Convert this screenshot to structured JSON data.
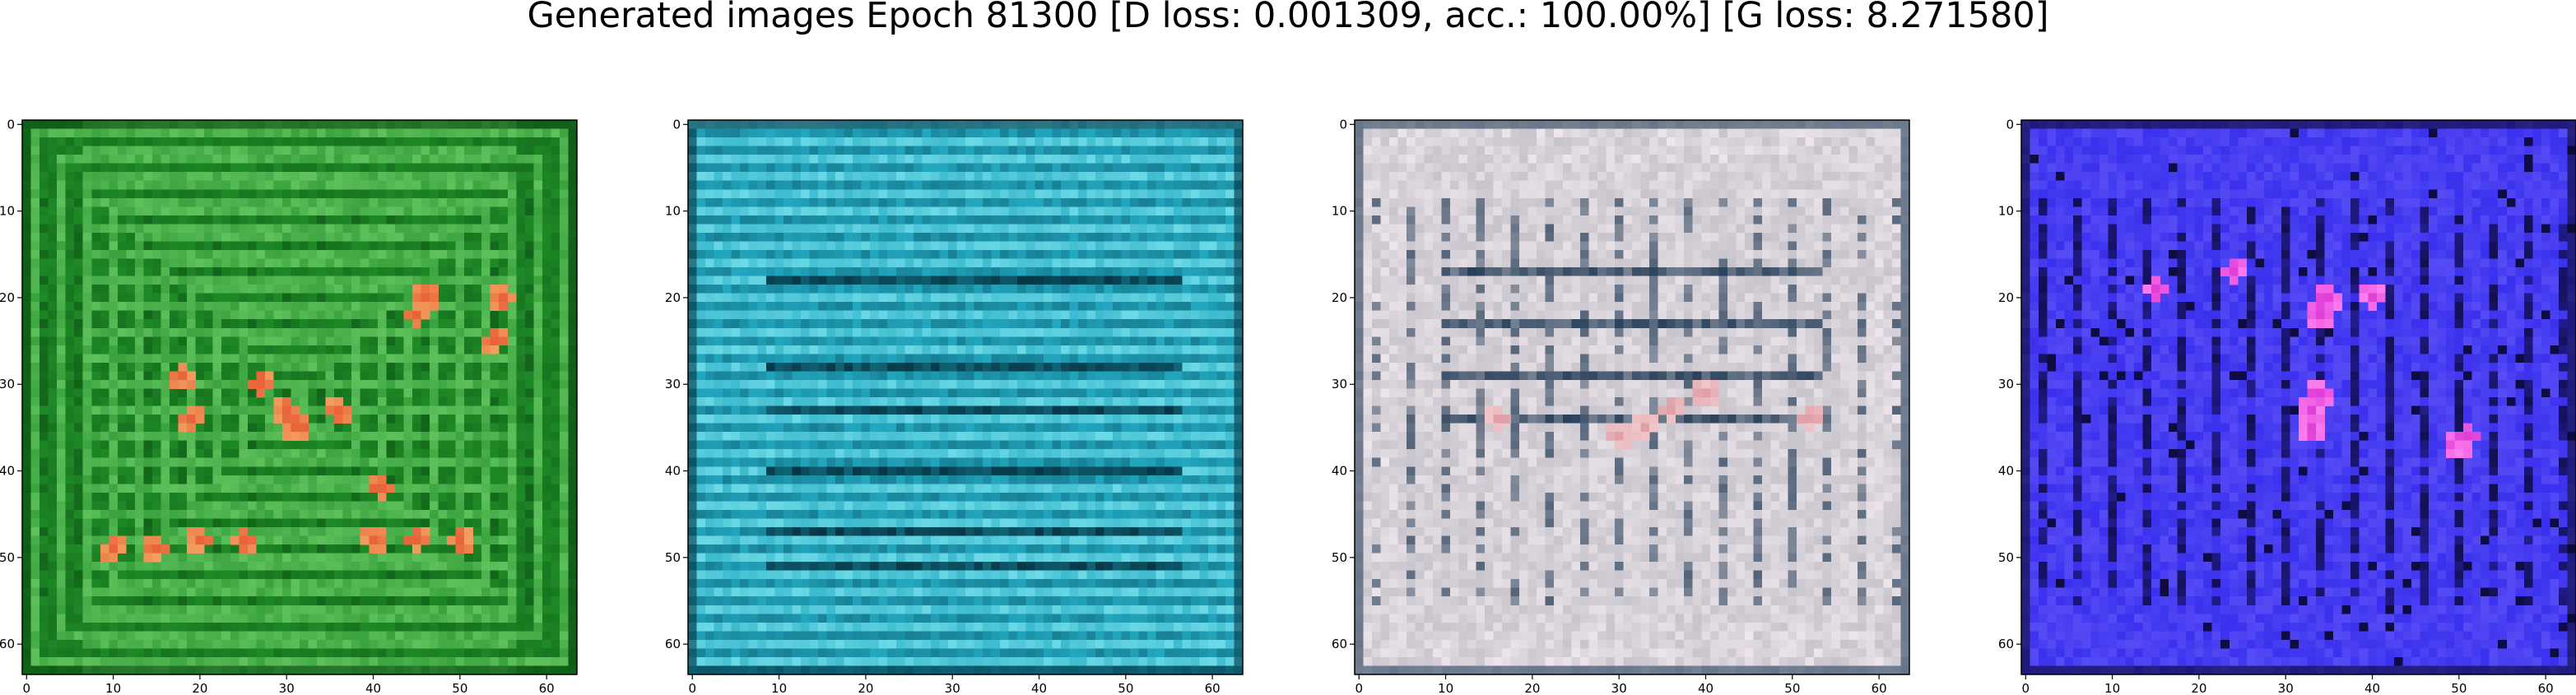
{
  "figure": {
    "title": "Generated images Epoch 81300 [D loss: 0.001309, acc.: 100.00%] [G loss: 8.271580]"
  },
  "axes": {
    "xticks": [
      0,
      10,
      20,
      30,
      40,
      50,
      60
    ],
    "yticks": [
      0,
      10,
      20,
      30,
      40,
      50,
      60
    ],
    "xlim": [
      -0.5,
      63.5
    ],
    "ylim": [
      63.5,
      -0.5
    ]
  },
  "panels": [
    {
      "name": "green",
      "base": "#1e8a26",
      "light": "#6fd06a",
      "dark": "#0a4a12",
      "hot": "#e8643a",
      "hotLight": "#f2a060",
      "border": "#0b3a10",
      "hotSpots": [
        [
          30,
          33
        ],
        [
          31,
          35
        ],
        [
          27,
          30
        ],
        [
          18,
          29
        ],
        [
          19,
          34
        ],
        [
          45,
          22
        ],
        [
          46,
          20
        ],
        [
          54,
          25
        ],
        [
          55,
          20
        ],
        [
          41,
          42
        ],
        [
          10,
          49
        ],
        [
          15,
          49
        ],
        [
          20,
          48
        ],
        [
          25,
          48
        ],
        [
          40,
          48
        ],
        [
          45,
          48
        ],
        [
          50,
          48
        ],
        [
          36,
          33
        ]
      ]
    },
    {
      "name": "cyan",
      "base": "#22a8c0",
      "light": "#7fe6f0",
      "dark": "#053645",
      "hot": "#0a2a36",
      "hotLight": "#1a6070",
      "border": "#0b3a44",
      "hotSpots": []
    },
    {
      "name": "pale",
      "base": "#c8c4cc",
      "light": "#eee6ec",
      "dark": "#28405a",
      "hot": "#e0a0a8",
      "hotLight": "#f0c8cc",
      "border": "#8a5050",
      "hotSpots": [
        [
          30,
          36
        ],
        [
          33,
          35
        ],
        [
          16,
          34
        ],
        [
          40,
          31
        ],
        [
          52,
          34
        ],
        [
          36,
          33
        ]
      ]
    },
    {
      "name": "blue",
      "base": "#3a30ee",
      "light": "#7a70ff",
      "dark": "#0a0830",
      "hot": "#e040d8",
      "hotLight": "#ff80f0",
      "border": "#0a0a40",
      "hotSpots": [
        [
          33,
          33
        ],
        [
          34,
          31
        ],
        [
          33,
          35
        ],
        [
          35,
          20
        ],
        [
          34,
          22
        ],
        [
          50,
          37
        ],
        [
          51,
          36
        ],
        [
          15,
          19
        ],
        [
          24,
          17
        ],
        [
          40,
          20
        ]
      ]
    }
  ]
}
